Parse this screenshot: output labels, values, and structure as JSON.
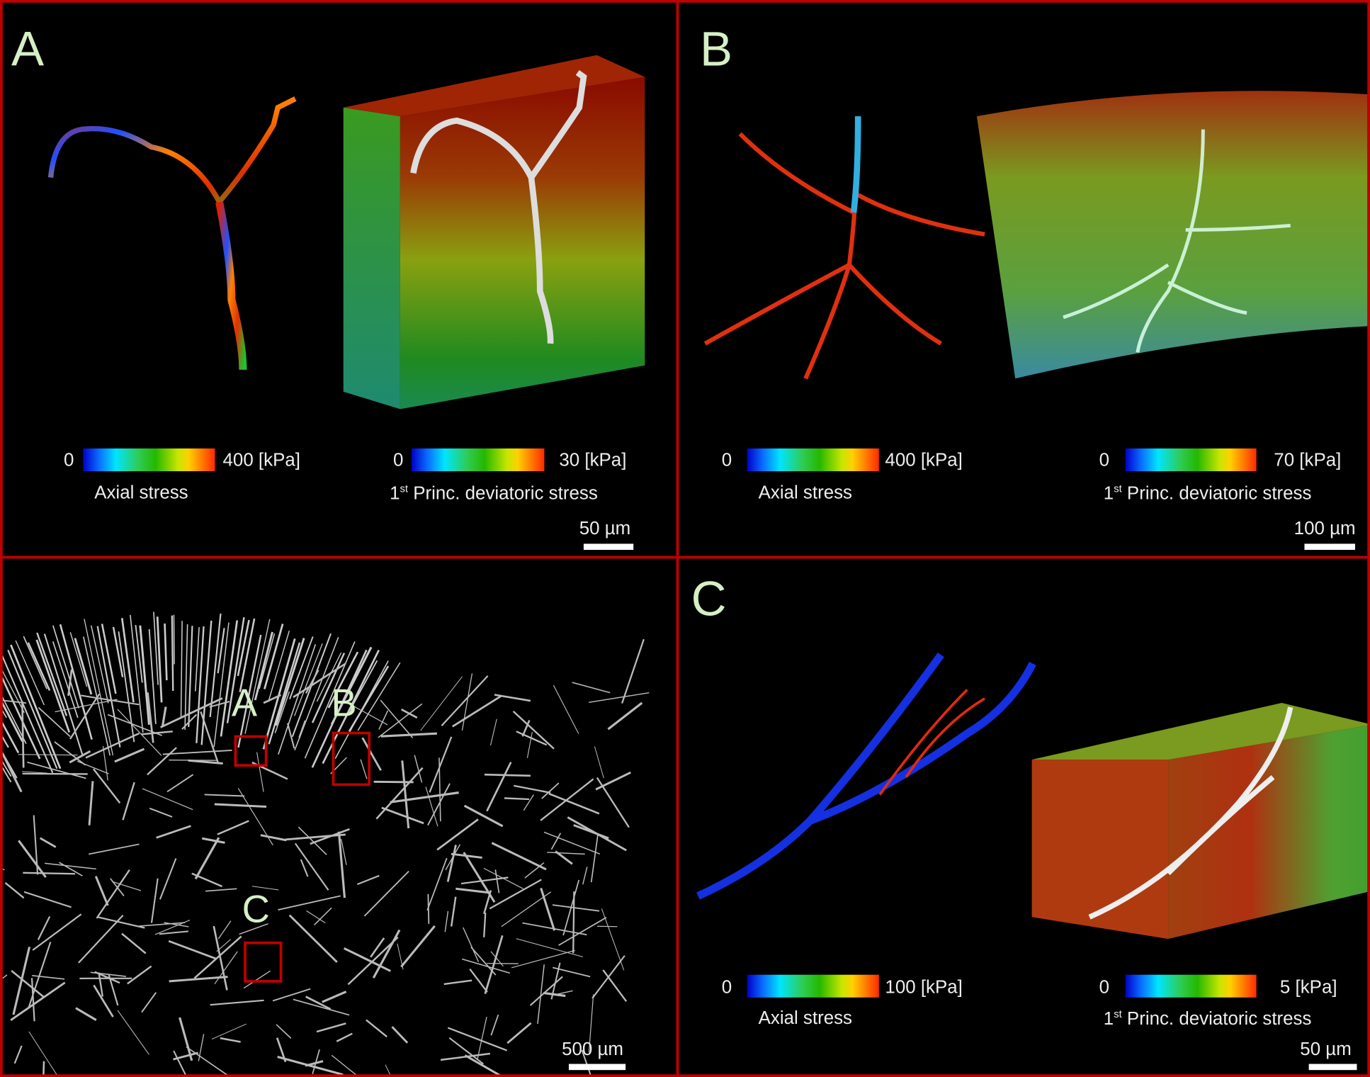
{
  "panels": {
    "A": {
      "label": "A",
      "colorbar_left": {
        "min": "0",
        "max": "400 [kPa]",
        "title": "Axial stress"
      },
      "colorbar_right": {
        "min": "0",
        "max": "30 [kPa]",
        "title_num": "1",
        "title_sup": "st",
        "title_rest": " Princ. deviatoric stress"
      },
      "scale_bar": "50 µm"
    },
    "B": {
      "label": "B",
      "colorbar_left": {
        "min": "0",
        "max": "400 [kPa]",
        "title": "Axial stress"
      },
      "colorbar_right": {
        "min": "0",
        "max": "70 [kPa]",
        "title_num": "1",
        "title_sup": "st",
        "title_rest": " Princ. deviatoric stress"
      },
      "scale_bar": "100 µm"
    },
    "C": {
      "label": "C",
      "colorbar_left": {
        "min": "0",
        "max": "100 [kPa]",
        "title": "Axial stress"
      },
      "colorbar_right": {
        "min": "0",
        "max": "5 [kPa]",
        "title_num": "1",
        "title_sup": "st",
        "title_rest": " Princ. deviatoric stress"
      },
      "scale_bar": "50 µm"
    },
    "overview": {
      "regions": [
        "A",
        "B",
        "C"
      ],
      "scale_bar": "500 µm"
    }
  },
  "colors": {
    "border": "#c00000",
    "panel_label": "#d6f0c6"
  }
}
